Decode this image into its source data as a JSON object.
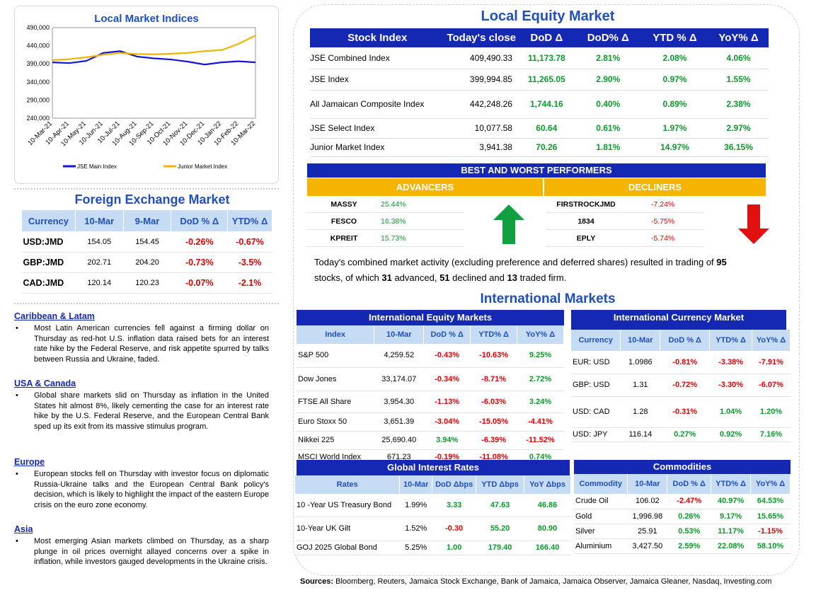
{
  "chart": {
    "title": "Local Market Indices",
    "legend": [
      "JSE Main Index",
      "Junior Market Index"
    ],
    "colors": {
      "main": "#1414d6",
      "junior": "#f0b400"
    },
    "chart_data": {
      "type": "line",
      "title": "Local Market Indices",
      "x": [
        "10-Mar-21",
        "10-Apr-21",
        "10-May-21",
        "10-Jun-21",
        "10-Jul-21",
        "10-Aug-21",
        "10-Sep-21",
        "10-Oct-21",
        "10-Nov-21",
        "10-Dec-21",
        "10-Jan-22",
        "10-Feb-22",
        "10-Mar-22"
      ],
      "yticks": [
        "490,000",
        "440,000",
        "390,000",
        "340,000",
        "290,000",
        "240,000"
      ],
      "ylim": [
        240000,
        490000
      ],
      "series": [
        {
          "name": "JSE Main Index",
          "values": [
            394000,
            392000,
            398000,
            420000,
            425000,
            410000,
            405000,
            402000,
            396000,
            388000,
            394000,
            397000,
            394000
          ]
        },
        {
          "name": "Junior Market Index",
          "values": [
            400000,
            403000,
            408000,
            415000,
            420000,
            417000,
            416000,
            418000,
            420000,
            425000,
            428000,
            445000,
            468000
          ]
        }
      ]
    }
  },
  "fx": {
    "title": "Foreign Exchange Market",
    "headers": [
      "Currency",
      "10-Mar",
      "9-Mar",
      "DoD % Δ",
      "YTD% Δ"
    ],
    "rows": [
      [
        "USD:JMD",
        "154.05",
        "154.45",
        "-0.26%",
        "-0.67%"
      ],
      [
        "GBP:JMD",
        "202.71",
        "204.20",
        "-0.73%",
        "-3.5%"
      ],
      [
        "CAD:JMD",
        "120.14",
        "120.23",
        "-0.07%",
        "-2.1%"
      ]
    ]
  },
  "news": [
    {
      "heading": "Caribbean & Latam",
      "text": "Most Latin American currencies fell against a firming dollar on Thursday as red-hot U.S. inflation data raised bets for an interest rate hike by the Federal Reserve, and risk appetite spurred by talks between Russia and Ukraine, faded."
    },
    {
      "heading": "USA & Canada",
      "text": "Global share markets slid on Thursday as inflation in the United States hit almost 8%, likely cementing the case for an interest rate hike by the U.S. Federal Reserve, and the European Central Bank sped up its exit from its massive stimulus program."
    },
    {
      "heading": "Europe",
      "text": "European stocks fell on Thursday with investor focus on diplomatic Russia-Ukraine talks and the European Central Bank policy's decision, which is likely to highlight the impact of the eastern Europe crisis on the euro zone economy."
    },
    {
      "heading": "Asia",
      "text": "Most emerging Asian markets climbed on Thursday, as a sharp plunge in oil prices overnight allayed concerns over a spike in inflation, while investors gauged developments in the Ukraine crisis."
    }
  ],
  "equity": {
    "title": "Local Equity Market",
    "headers": [
      "Stock Index",
      "Today's close",
      "DoD  Δ",
      "DoD% Δ",
      "YTD % Δ",
      "YoY% Δ"
    ],
    "rows": [
      [
        "JSE Combined Index",
        "409,490.33",
        "11,173.78",
        "2.81%",
        "2.08%",
        "4.06%"
      ],
      [
        "JSE Index",
        "399,994.85",
        "11,265.05",
        "2.90%",
        "0.97%",
        "1.55%"
      ],
      [
        "All Jamaican Composite Index",
        "442,248.26",
        "1,744.16",
        "0.40%",
        "0.89%",
        "2.38%"
      ],
      [
        "JSE Select Index",
        "10,077.58",
        "60.64",
        "0.61%",
        "1.97%",
        "2.97%"
      ],
      [
        "Junior Market Index",
        "3,941.38",
        "70.26",
        "1.81%",
        "14.97%",
        "36.15%"
      ]
    ]
  },
  "performers": {
    "title": "BEST AND WORST PERFORMERS",
    "adv_label": "ADVANCERS",
    "dec_label": "DECLINERS",
    "advancers": [
      [
        "MASSY",
        "25.44%"
      ],
      [
        "FESCO",
        "16.38%"
      ],
      [
        "KPREIT",
        "15.73%"
      ]
    ],
    "decliners": [
      [
        "FIRSTROCKJMD",
        "-7.24%"
      ],
      [
        "1834",
        "-5.75%"
      ],
      [
        "EPLY",
        "-5.74%"
      ]
    ]
  },
  "summary": {
    "t1": "Today's combined market activity (excluding preference and deferred shares) resulted in trading of ",
    "n1": "95",
    "t2": "stocks, of which ",
    "n2": "31",
    "t3": " advanced, ",
    "n3": "51",
    "t4": " declined and ",
    "n4": "13",
    "t5": " traded firm."
  },
  "intl": {
    "title": "International Markets",
    "equity": {
      "title": "International Equity Markets",
      "headers": [
        "Index",
        "10-Mar",
        "DoD % Δ",
        "YTD% Δ",
        "YoY% Δ"
      ],
      "rows": [
        [
          "S&P 500",
          "4,259.52",
          "-0.43%",
          "-10.63%",
          "9.25%"
        ],
        [
          "Dow Jones",
          "33,174.07",
          "-0.34%",
          "-8.71%",
          "2.72%"
        ],
        [
          "FTSE All Share",
          "3,954.30",
          "-1.13%",
          "-6.03%",
          "3.24%"
        ],
        [
          "Euro Stoxx 50",
          "3,651.39",
          "-3.04%",
          "-15.05%",
          "-4.41%"
        ],
        [
          "Nikkei 225",
          "25,690.40",
          "3.94%",
          "-6.39%",
          "-11.52%"
        ],
        [
          "MSCI World Index",
          "671.23",
          "-0.19%",
          "-11.08%",
          "0.74%"
        ]
      ]
    },
    "currency": {
      "title": "International Currency Market",
      "headers": [
        "Currency",
        "10-Mar",
        "DoD % Δ",
        "YTD% Δ",
        "YoY% Δ"
      ],
      "rows": [
        [
          "EUR: USD",
          "1.0986",
          "-0.81%",
          "-3.38%",
          "-7.91%"
        ],
        [
          "GBP: USD",
          "1.31",
          "-0.72%",
          "-3.30%",
          "-6.07%"
        ],
        [
          "USD: CAD",
          "1.28",
          "-0.31%",
          "1.04%",
          "1.20%"
        ],
        [
          "USD: JPY",
          "116.14",
          "0.27%",
          "0.92%",
          "7.16%"
        ]
      ]
    },
    "rates": {
      "title": "Global Interest Rates",
      "headers": [
        "Rates",
        "10-Mar",
        "DoD Δbps",
        "YTD Δbps",
        "YoY Δbps"
      ],
      "rows": [
        [
          "10 -Year US Treasury Bond",
          "1.99%",
          "3.33",
          "47.63",
          "46.86"
        ],
        [
          "10-Year UK Gilt",
          "1.52%",
          "-0.30",
          "55.20",
          "80.90"
        ],
        [
          "GOJ 2025 Global Bond",
          "5.25%",
          "1.00",
          "179.40",
          "166.40"
        ]
      ]
    },
    "commodities": {
      "title": "Commodities",
      "headers": [
        "Commodity",
        "10-Mar",
        "DoD % Δ",
        "YTD% Δ",
        "YoY% Δ"
      ],
      "rows": [
        [
          "Crude Oil",
          "106.02",
          "-2.47%",
          "40.97%",
          "64.53%"
        ],
        [
          "Gold",
          "1,996.98",
          "0.26%",
          "9.17%",
          "15.65%"
        ],
        [
          "Silver",
          "25.91",
          "0.53%",
          "11.17%",
          "-1.15%"
        ],
        [
          "Aluminium",
          "3,427.50",
          "2.59%",
          "22.08%",
          "58.10%"
        ]
      ]
    }
  },
  "sources": {
    "label": "Sources:",
    "text": " Bloomberg, Reuters, Jamaica Stock Exchange, Bank of Jamaica, Jamaica Observer, Jamaica Gleaner, Nasdaq, Investing.com"
  }
}
